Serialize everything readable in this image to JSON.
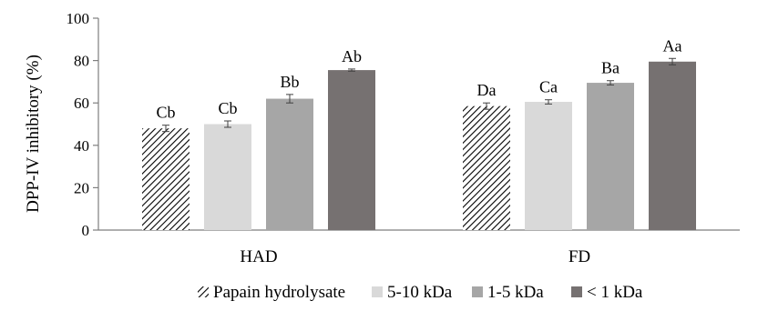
{
  "chart_data": {
    "type": "bar",
    "ylabel": "DPP-IV inhibitory (%)",
    "ylim": [
      0,
      100
    ],
    "yticks": [
      0,
      20,
      40,
      60,
      80,
      100
    ],
    "categories": [
      "HAD",
      "FD"
    ],
    "grid": false,
    "legend_position": "bottom",
    "series": [
      {
        "name": "Papain hydrolysate",
        "values": [
          48,
          58.5
        ],
        "errors": [
          1.5,
          1.5
        ],
        "labels": [
          "Cb",
          "Da"
        ],
        "color": "#ffffff",
        "pattern": "hatch"
      },
      {
        "name": "5-10 kDa",
        "values": [
          50,
          60.5
        ],
        "errors": [
          1.5,
          1.0
        ],
        "labels": [
          "Cb",
          "Ca"
        ],
        "color": "#d9d9d9",
        "pattern": "solid"
      },
      {
        "name": "1-5 kDa",
        "values": [
          62,
          69.5
        ],
        "errors": [
          2.0,
          1.0
        ],
        "labels": [
          "Bb",
          "Ba"
        ],
        "color": "#a6a6a6",
        "pattern": "solid"
      },
      {
        "name": "< 1 kDa",
        "values": [
          75.5,
          79.5
        ],
        "errors": [
          0.5,
          1.5
        ],
        "labels": [
          "Ab",
          "Aa"
        ],
        "color": "#767171",
        "pattern": "solid"
      }
    ]
  }
}
